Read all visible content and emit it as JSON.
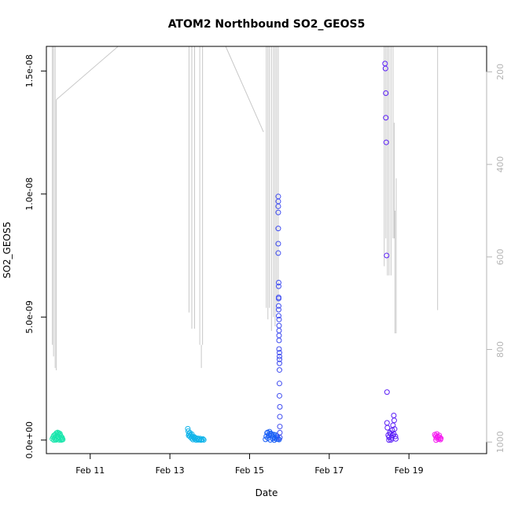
{
  "chart_data": {
    "type": "scatter",
    "title": "ATOM2 Northbound SO2_GEOS5",
    "xlabel": "Date",
    "ylabel": "SO2_GEOS5",
    "x_ticks": [
      "Feb 11",
      "Feb 13",
      "Feb 15",
      "Feb 17",
      "Feb 19"
    ],
    "x_tick_days": [
      11,
      13,
      15,
      17,
      19
    ],
    "xlim_days": [
      9.9,
      20.95
    ],
    "y_ticks": [
      "0.0e+00",
      "5.0e-09",
      "1.0e-08",
      "1.5e-08"
    ],
    "y_tick_values": [
      0,
      5e-09,
      1e-08,
      1.5e-08
    ],
    "ylim": [
      -5.5e-10,
      1.6e-08
    ],
    "y2_ticks": [
      "200",
      "400",
      "600",
      "800",
      "1000"
    ],
    "y2_tick_values": [
      200,
      400,
      600,
      800,
      1000
    ],
    "y2lim": [
      1025,
      145
    ],
    "y2_color": "#b5b5b5",
    "pressure_line_color": "#c8c8c8",
    "series": [
      {
        "color": "#1be6ad",
        "points": [
          [
            10.05,
            5e-11
          ],
          [
            10.07,
            1.2e-10
          ],
          [
            10.09,
            1.9e-10
          ],
          [
            10.1,
            8e-11
          ],
          [
            10.12,
            2.2e-10
          ],
          [
            10.13,
            3e-11
          ],
          [
            10.15,
            2.8e-10
          ],
          [
            10.16,
            1.6e-10
          ],
          [
            10.17,
            5e-11
          ],
          [
            10.19,
            2.4e-10
          ],
          [
            10.2,
            1.3e-10
          ],
          [
            10.22,
            1e-11
          ],
          [
            10.23,
            2.1e-10
          ],
          [
            10.25,
            9e-11
          ],
          [
            10.26,
            1.7e-10
          ],
          [
            10.28,
            4e-11
          ],
          [
            10.29,
            1.1e-10
          ],
          [
            10.31,
            2e-11
          ],
          [
            10.09,
            0
          ],
          [
            10.14,
            1e-11
          ],
          [
            10.18,
            3.1e-10
          ],
          [
            10.21,
            2.9e-10
          ],
          [
            10.24,
            2.6e-10
          ],
          [
            10.27,
            0
          ],
          [
            10.3,
            6e-11
          ]
        ]
      },
      {
        "color": "#11b4ea",
        "points": [
          [
            13.45,
            4.6e-10
          ],
          [
            13.46,
            3.6e-10
          ],
          [
            13.48,
            2.5e-10
          ],
          [
            13.5,
            1.5e-10
          ],
          [
            13.52,
            2.1e-10
          ],
          [
            13.54,
            8e-11
          ],
          [
            13.56,
            1.4e-10
          ],
          [
            13.58,
            2e-11
          ],
          [
            13.6,
            1.1e-10
          ],
          [
            13.62,
            5e-11
          ],
          [
            13.64,
            9e-11
          ],
          [
            13.66,
            0
          ],
          [
            13.68,
            4e-11
          ],
          [
            13.7,
            7e-11
          ],
          [
            13.72,
            1e-11
          ],
          [
            13.74,
            3e-11
          ],
          [
            13.76,
            6e-11
          ],
          [
            13.78,
            0
          ],
          [
            13.8,
            2e-11
          ],
          [
            13.83,
            4e-11
          ],
          [
            13.85,
            1e-11
          ],
          [
            13.5,
            3e-10
          ],
          [
            13.47,
            1.9e-10
          ],
          [
            13.55,
            2.4e-10
          ],
          [
            13.61,
            1.3e-10
          ]
        ]
      },
      {
        "color": "#1a5ff5",
        "points": [
          [
            15.4,
            3e-11
          ],
          [
            15.42,
            1.5e-10
          ],
          [
            15.44,
            2.9e-10
          ],
          [
            15.46,
            8e-11
          ],
          [
            15.48,
            2.1e-10
          ],
          [
            15.5,
            3.4e-10
          ],
          [
            15.52,
            1e-11
          ],
          [
            15.54,
            1.8e-10
          ],
          [
            15.56,
            2.4e-10
          ],
          [
            15.58,
            6e-11
          ],
          [
            15.6,
            1.3e-10
          ],
          [
            15.62,
            0
          ],
          [
            15.64,
            9e-11
          ],
          [
            15.66,
            2e-10
          ],
          [
            15.68,
            4e-11
          ],
          [
            15.7,
            1.1e-10
          ],
          [
            15.72,
            5e-11
          ],
          [
            15.74,
            2e-11
          ],
          [
            15.45,
            3.1e-10
          ],
          [
            15.53,
            2.7e-10
          ],
          [
            15.61,
            2.2e-10
          ],
          [
            15.69,
            1.6e-10
          ]
        ]
      },
      {
        "color": "#3f4cf0",
        "points": [
          [
            15.72,
            9.9e-09
          ],
          [
            15.72,
            9.7e-09
          ],
          [
            15.72,
            9.5e-09
          ],
          [
            15.72,
            9.25e-09
          ],
          [
            15.72,
            8.6e-09
          ],
          [
            15.72,
            7.98e-09
          ],
          [
            15.72,
            7.6e-09
          ],
          [
            15.73,
            6.4e-09
          ],
          [
            15.73,
            6.25e-09
          ],
          [
            15.73,
            5.8e-09
          ],
          [
            15.73,
            5.75e-09
          ],
          [
            15.73,
            5.45e-09
          ],
          [
            15.73,
            5.3e-09
          ],
          [
            15.73,
            5.05e-09
          ],
          [
            15.74,
            4.9e-09
          ],
          [
            15.74,
            4.65e-09
          ],
          [
            15.74,
            4.45e-09
          ],
          [
            15.74,
            4.25e-09
          ],
          [
            15.74,
            4.05e-09
          ],
          [
            15.74,
            3.7e-09
          ],
          [
            15.75,
            3.55e-09
          ],
          [
            15.75,
            3.4e-09
          ],
          [
            15.75,
            3.28e-09
          ],
          [
            15.75,
            3.12e-09
          ],
          [
            15.75,
            2.85e-09
          ],
          [
            15.75,
            2.3e-09
          ],
          [
            15.75,
            1.8e-09
          ],
          [
            15.76,
            1.35e-09
          ],
          [
            15.76,
            9.5e-10
          ],
          [
            15.76,
            5.5e-10
          ],
          [
            15.76,
            3e-10
          ],
          [
            15.76,
            1e-10
          ]
        ]
      },
      {
        "color": "#5b1ff7",
        "points": [
          [
            18.4,
            1.53e-08
          ],
          [
            18.41,
            1.51e-08
          ],
          [
            18.42,
            1.41e-08
          ],
          [
            18.42,
            1.31e-08
          ],
          [
            18.43,
            1.21e-08
          ],
          [
            18.44,
            7.5e-09
          ],
          [
            18.45,
            1.95e-09
          ],
          [
            18.45,
            7e-10
          ],
          [
            18.46,
            5e-10
          ],
          [
            18.48,
            2e-10
          ],
          [
            18.5,
            1.2e-10
          ],
          [
            18.52,
            3e-10
          ],
          [
            18.54,
            2.5e-10
          ],
          [
            18.56,
            8e-11
          ],
          [
            18.58,
            4e-10
          ],
          [
            18.6,
            6e-10
          ],
          [
            18.62,
            1e-09
          ],
          [
            18.63,
            8e-10
          ],
          [
            18.64,
            4.5e-10
          ],
          [
            18.66,
            1.5e-10
          ],
          [
            18.67,
            5e-11
          ],
          [
            18.55,
            1e-11
          ],
          [
            18.5,
            0
          ],
          [
            18.62,
            2.5e-10
          ],
          [
            18.59,
            2e-10
          ]
        ]
      },
      {
        "color": "#f51af0",
        "points": [
          [
            19.65,
            2.2e-10
          ],
          [
            19.67,
            1.6e-10
          ],
          [
            19.69,
            9e-11
          ],
          [
            19.7,
            2.5e-10
          ],
          [
            19.72,
            1.4e-10
          ],
          [
            19.74,
            4e-11
          ],
          [
            19.76,
            1.9e-10
          ],
          [
            19.77,
            1e-10
          ],
          [
            19.79,
            2e-11
          ],
          [
            19.8,
            7e-11
          ],
          [
            19.68,
            0
          ],
          [
            19.73,
            1.2e-10
          ]
        ]
      }
    ],
    "pressure_segments": [
      [
        [
          10.05,
          145
        ],
        [
          10.05,
          790
        ]
      ],
      [
        [
          10.08,
          145
        ],
        [
          10.08,
          815
        ]
      ],
      [
        [
          10.12,
          145
        ],
        [
          10.12,
          840
        ]
      ],
      [
        [
          10.15,
          845
        ],
        [
          10.15,
          260
        ]
      ],
      [
        [
          10.15,
          260
        ],
        [
          11.7,
          145
        ]
      ],
      [
        [
          13.48,
          145
        ],
        [
          13.48,
          720
        ]
      ],
      [
        [
          13.55,
          145
        ],
        [
          13.55,
          755
        ]
      ],
      [
        [
          13.62,
          145
        ],
        [
          13.62,
          755
        ]
      ],
      [
        [
          13.75,
          145
        ],
        [
          13.75,
          790
        ]
      ],
      [
        [
          13.79,
          790
        ],
        [
          13.79,
          840
        ]
      ],
      [
        [
          13.82,
          145
        ],
        [
          13.82,
          790
        ]
      ],
      [
        [
          14.4,
          145
        ],
        [
          15.35,
          330
        ]
      ],
      [
        [
          15.42,
          145
        ],
        [
          15.42,
          710
        ]
      ],
      [
        [
          15.46,
          145
        ],
        [
          15.46,
          735
        ]
      ],
      [
        [
          15.5,
          145
        ],
        [
          15.5,
          710
        ]
      ],
      [
        [
          15.55,
          145
        ],
        [
          15.55,
          760
        ]
      ],
      [
        [
          15.6,
          145
        ],
        [
          15.6,
          730
        ]
      ],
      [
        [
          15.64,
          145
        ],
        [
          15.64,
          750
        ]
      ],
      [
        [
          15.68,
          145
        ],
        [
          15.68,
          720
        ]
      ],
      [
        [
          15.72,
          145
        ],
        [
          15.72,
          700
        ]
      ],
      [
        [
          18.38,
          145
        ],
        [
          18.38,
          620
        ]
      ],
      [
        [
          18.42,
          145
        ],
        [
          18.42,
          560
        ]
      ],
      [
        [
          18.46,
          145
        ],
        [
          18.46,
          640
        ]
      ],
      [
        [
          18.5,
          145
        ],
        [
          18.5,
          640
        ]
      ],
      [
        [
          18.55,
          145
        ],
        [
          18.55,
          640
        ]
      ],
      [
        [
          18.6,
          145
        ],
        [
          18.6,
          560
        ]
      ],
      [
        [
          18.63,
          310
        ],
        [
          18.63,
          560
        ]
      ],
      [
        [
          18.65,
          500
        ],
        [
          18.65,
          765
        ]
      ],
      [
        [
          18.68,
          430
        ],
        [
          18.68,
          765
        ]
      ],
      [
        [
          19.72,
          145
        ],
        [
          19.72,
          715
        ]
      ]
    ]
  }
}
